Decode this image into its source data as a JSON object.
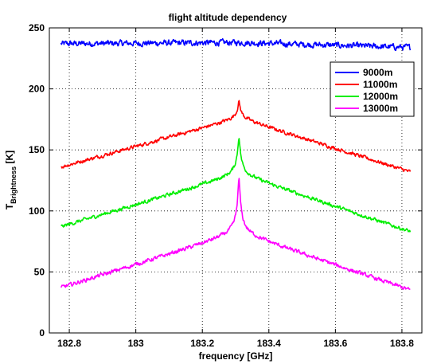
{
  "chart_data": {
    "type": "line",
    "title": "flight altitude dependency",
    "xlabel": "frequency [GHz]",
    "ylabel_main": "T",
    "ylabel_sub": "Brightness",
    "ylabel_unit": " [K]",
    "xlim": [
      182.74,
      183.86
    ],
    "ylim": [
      0,
      250
    ],
    "xticks": [
      182.8,
      183.0,
      183.2,
      183.4,
      183.6,
      183.8
    ],
    "xtick_labels": [
      "182.8",
      "183",
      "183.2",
      "183.4",
      "183.6",
      "183.8"
    ],
    "yticks": [
      0,
      50,
      100,
      150,
      200,
      250
    ],
    "ytick_labels": [
      "0",
      "50",
      "100",
      "150",
      "200",
      "250"
    ],
    "grid": true,
    "legend_position": "top-right",
    "center_x": 183.31,
    "x_range": [
      182.775,
      183.825
    ],
    "series": [
      {
        "name": "9000m",
        "color": "#0000ff",
        "start": 237,
        "peak": 238,
        "end": 234,
        "spike": 0,
        "noise": 2.0
      },
      {
        "name": "11000m",
        "color": "#ff0000",
        "start": 136,
        "peak": 176,
        "end": 132,
        "spike": 14,
        "noise": 1.2
      },
      {
        "name": "12000m",
        "color": "#00ee00",
        "start": 87,
        "peak": 130,
        "end": 83,
        "spike": 32,
        "noise": 1.2
      },
      {
        "name": "13000m",
        "color": "#ff00ff",
        "start": 37,
        "peak": 82,
        "end": 35,
        "spike": 46,
        "noise": 1.3
      }
    ]
  }
}
